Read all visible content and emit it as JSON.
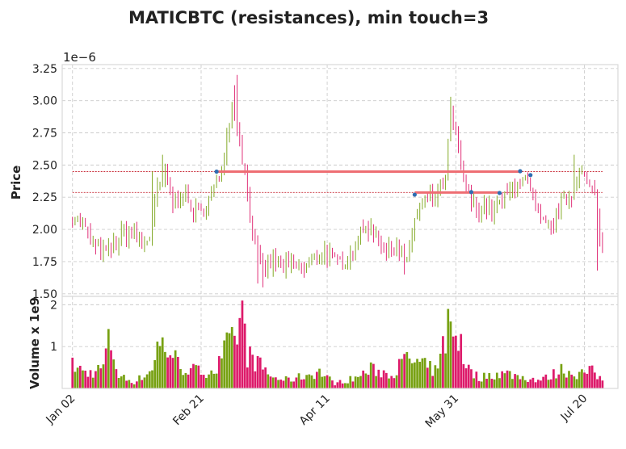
{
  "chart_data": {
    "type": "candlestick",
    "title": "MATICBTC (resistances), min touch=3",
    "price_panel": {
      "ylabel": "Price",
      "offset_label": "1e−6",
      "ylim": [
        1.48,
        3.28
      ],
      "yticks": [
        1.5,
        1.75,
        2.0,
        2.25,
        2.5,
        2.75,
        3.0,
        3.25
      ],
      "ytick_labels": [
        "1.50",
        "1.75",
        "2.00",
        "2.25",
        "2.50",
        "2.75",
        "3.00",
        "3.25"
      ]
    },
    "volume_panel": {
      "ylabel": "Volume x 1e9",
      "ylim": [
        0,
        2.2
      ],
      "yticks": [
        1,
        2
      ],
      "ytick_labels": [
        "1",
        "2"
      ]
    },
    "x_axis": {
      "num_days": 207,
      "xlim": [
        -4,
        212
      ],
      "ticks": [
        {
          "label": "Jan 02",
          "day": 0
        },
        {
          "label": "Feb 21",
          "day": 50
        },
        {
          "label": "Apr 11",
          "day": 99
        },
        {
          "label": "May 31",
          "day": 149
        },
        {
          "label": "Jul 20",
          "day": 199
        }
      ]
    },
    "anchors": [
      {
        "day": 0,
        "price": 2.1
      },
      {
        "day": 4,
        "price": 2.05
      },
      {
        "day": 7,
        "price": 1.9
      },
      {
        "day": 10,
        "price": 1.82
      },
      {
        "day": 14,
        "price": 1.83
      },
      {
        "day": 17,
        "price": 1.9
      },
      {
        "day": 20,
        "price": 1.98
      },
      {
        "day": 24,
        "price": 1.95
      },
      {
        "day": 27,
        "price": 1.88
      },
      {
        "day": 30,
        "price": 1.95
      },
      {
        "day": 33,
        "price": 2.3
      },
      {
        "day": 36,
        "price": 2.42
      },
      {
        "day": 39,
        "price": 2.2
      },
      {
        "day": 43,
        "price": 2.3
      },
      {
        "day": 46,
        "price": 2.15
      },
      {
        "day": 50,
        "price": 2.12
      },
      {
        "day": 54,
        "price": 2.28
      },
      {
        "day": 57,
        "price": 2.4
      },
      {
        "day": 60,
        "price": 2.72
      },
      {
        "day": 62,
        "price": 2.98
      },
      {
        "day": 65,
        "price": 2.7
      },
      {
        "day": 68,
        "price": 2.28
      },
      {
        "day": 71,
        "price": 1.85
      },
      {
        "day": 74,
        "price": 1.68
      },
      {
        "day": 78,
        "price": 1.75
      },
      {
        "day": 82,
        "price": 1.7
      },
      {
        "day": 86,
        "price": 1.72
      },
      {
        "day": 90,
        "price": 1.69
      },
      {
        "day": 94,
        "price": 1.78
      },
      {
        "day": 98,
        "price": 1.83
      },
      {
        "day": 102,
        "price": 1.75
      },
      {
        "day": 106,
        "price": 1.76
      },
      {
        "day": 110,
        "price": 1.88
      },
      {
        "day": 114,
        "price": 2.02
      },
      {
        "day": 118,
        "price": 1.97
      },
      {
        "day": 122,
        "price": 1.82
      },
      {
        "day": 126,
        "price": 1.9
      },
      {
        "day": 130,
        "price": 1.72
      },
      {
        "day": 133,
        "price": 2.08
      },
      {
        "day": 137,
        "price": 2.22
      },
      {
        "day": 141,
        "price": 2.25
      },
      {
        "day": 145,
        "price": 2.38
      },
      {
        "day": 147,
        "price": 2.92
      },
      {
        "day": 150,
        "price": 2.6
      },
      {
        "day": 153,
        "price": 2.3
      },
      {
        "day": 156,
        "price": 2.18
      },
      {
        "day": 160,
        "price": 2.18
      },
      {
        "day": 163,
        "price": 2.13
      },
      {
        "day": 166,
        "price": 2.2
      },
      {
        "day": 170,
        "price": 2.28
      },
      {
        "day": 173,
        "price": 2.4
      },
      {
        "day": 176,
        "price": 2.38
      },
      {
        "day": 179,
        "price": 2.22
      },
      {
        "day": 182,
        "price": 2.05
      },
      {
        "day": 186,
        "price": 2.0
      },
      {
        "day": 190,
        "price": 2.2
      },
      {
        "day": 194,
        "price": 2.28
      },
      {
        "day": 197,
        "price": 2.48
      },
      {
        "day": 200,
        "price": 2.35
      },
      {
        "day": 203,
        "price": 2.25
      },
      {
        "day": 206,
        "price": 1.85
      }
    ],
    "volume_anchors": [
      {
        "day": 0,
        "vol": 0.55
      },
      {
        "day": 6,
        "vol": 0.35
      },
      {
        "day": 12,
        "vol": 0.5
      },
      {
        "day": 14,
        "vol": 1.3
      },
      {
        "day": 18,
        "vol": 0.3
      },
      {
        "day": 24,
        "vol": 0.15
      },
      {
        "day": 30,
        "vol": 0.4
      },
      {
        "day": 34,
        "vol": 1.0
      },
      {
        "day": 38,
        "vol": 0.9
      },
      {
        "day": 42,
        "vol": 0.5
      },
      {
        "day": 50,
        "vol": 0.4
      },
      {
        "day": 56,
        "vol": 0.45
      },
      {
        "day": 60,
        "vol": 1.0
      },
      {
        "day": 63,
        "vol": 1.1
      },
      {
        "day": 65,
        "vol": 1.6
      },
      {
        "day": 68,
        "vol": 0.8
      },
      {
        "day": 72,
        "vol": 0.6
      },
      {
        "day": 78,
        "vol": 0.25
      },
      {
        "day": 84,
        "vol": 0.2
      },
      {
        "day": 90,
        "vol": 0.3
      },
      {
        "day": 96,
        "vol": 0.4
      },
      {
        "day": 102,
        "vol": 0.12
      },
      {
        "day": 110,
        "vol": 0.25
      },
      {
        "day": 116,
        "vol": 0.45
      },
      {
        "day": 124,
        "vol": 0.35
      },
      {
        "day": 130,
        "vol": 0.7
      },
      {
        "day": 136,
        "vol": 0.55
      },
      {
        "day": 142,
        "vol": 0.4
      },
      {
        "day": 146,
        "vol": 1.5
      },
      {
        "day": 150,
        "vol": 1.1
      },
      {
        "day": 154,
        "vol": 0.45
      },
      {
        "day": 158,
        "vol": 0.25
      },
      {
        "day": 164,
        "vol": 0.35
      },
      {
        "day": 170,
        "vol": 0.35
      },
      {
        "day": 176,
        "vol": 0.25
      },
      {
        "day": 182,
        "vol": 0.2
      },
      {
        "day": 186,
        "vol": 0.3
      },
      {
        "day": 190,
        "vol": 0.45
      },
      {
        "day": 196,
        "vol": 0.35
      },
      {
        "day": 202,
        "vol": 0.4
      },
      {
        "day": 206,
        "vol": 0.2
      }
    ],
    "spikes": [
      {
        "day": 64,
        "price": 3.2
      },
      {
        "day": 63,
        "price": 3.12
      },
      {
        "day": 147,
        "price": 3.03
      },
      {
        "day": 148,
        "price": 2.95
      },
      {
        "day": 35,
        "price": 2.58
      },
      {
        "day": 195,
        "price": 2.58
      },
      {
        "day": 31,
        "price": 2.45
      },
      {
        "day": 204,
        "price": 1.68
      },
      {
        "day": 129,
        "price": 1.65
      },
      {
        "day": 72,
        "price": 1.58
      },
      {
        "day": 74,
        "price": 1.55
      }
    ],
    "volume_spikes": [
      {
        "day": 66,
        "vol": 2.1
      },
      {
        "day": 146,
        "vol": 1.9
      },
      {
        "day": 147,
        "vol": 1.6
      },
      {
        "day": 67,
        "vol": 1.55
      },
      {
        "day": 14,
        "vol": 1.42
      },
      {
        "day": 151,
        "vol": 1.3
      },
      {
        "day": 61,
        "vol": 1.32
      },
      {
        "day": 144,
        "vol": 1.25
      },
      {
        "day": 35,
        "vol": 1.22
      },
      {
        "day": 33,
        "vol": 1.12
      }
    ],
    "resistance_lines": [
      {
        "level": 2.449,
        "start_day": 56,
        "end_day": 174,
        "color": "#ee6e73"
      },
      {
        "level": 2.287,
        "start_day": 133,
        "end_day": 166,
        "color": "#ee6e73"
      }
    ],
    "reference_lines": [
      {
        "level": 2.449,
        "color": "#c92f3a"
      },
      {
        "level": 2.287,
        "color": "#c92f3a"
      }
    ],
    "touch_points": [
      {
        "day": 56,
        "price": 2.449
      },
      {
        "day": 133,
        "price": 2.27
      },
      {
        "day": 155,
        "price": 2.29
      },
      {
        "day": 166,
        "price": 2.283
      },
      {
        "day": 174,
        "price": 2.452
      },
      {
        "day": 178,
        "price": 2.422
      }
    ],
    "colors": {
      "up": "#77a112",
      "down": "#dd1a6a",
      "grid": "#cccccc",
      "touch_point": "#2e6db2",
      "background": "#ffffff"
    }
  }
}
